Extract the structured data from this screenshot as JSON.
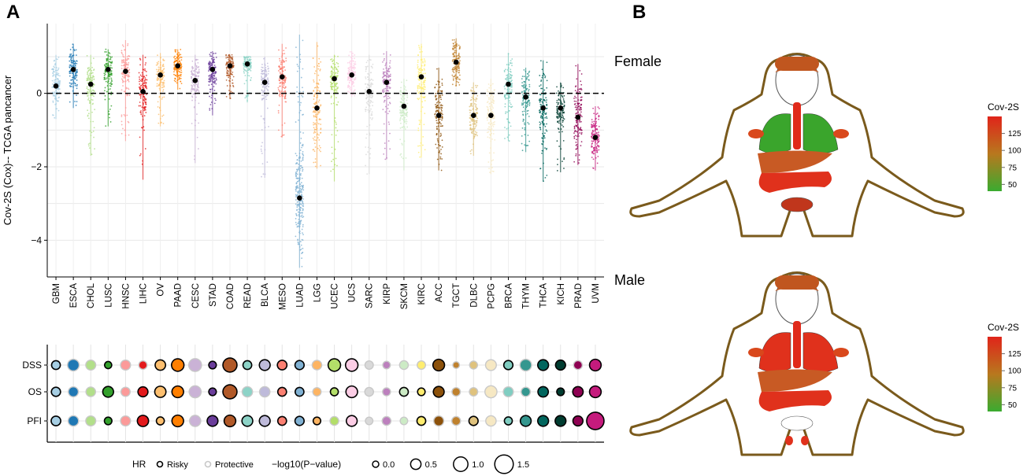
{
  "panels": {
    "a": "A",
    "b": "B"
  },
  "chart_data": [
    {
      "type": "scatter",
      "name": "cov2s-by-cancer",
      "ylabel": "Cov-2S (Cox)-- TCGA pancancer",
      "ylim": [
        -5,
        1.9
      ],
      "yticks": [
        -4,
        -2,
        0
      ],
      "ytick_labels": [
        "−4",
        "−2",
        "0"
      ],
      "reference_line": 0,
      "categories": [
        "GBM",
        "ESCA",
        "CHOL",
        "LUSC",
        "HNSC",
        "LIHC",
        "OV",
        "PAAD",
        "CESC",
        "STAD",
        "COAD",
        "READ",
        "BLCA",
        "MESO",
        "LUAD",
        "LGG",
        "UCEC",
        "UCS",
        "SARC",
        "KIRP",
        "SKCM",
        "KIRC",
        "ACC",
        "TGCT",
        "DLBC",
        "PCPG",
        "BRCA",
        "THYM",
        "THCA",
        "KICH",
        "PRAD",
        "UVM"
      ],
      "colors": [
        "#a6cee3",
        "#1f78b4",
        "#b2df8a",
        "#33a02c",
        "#fb9a99",
        "#e31a1c",
        "#fdbf6f",
        "#ff7f00",
        "#cab2d6",
        "#6a3d9a",
        "#b15928",
        "#8dd3c7",
        "#bebada",
        "#fb8072",
        "#80b1d3",
        "#fdb462",
        "#b3de69",
        "#fccde5",
        "#d9d9d9",
        "#bc80bd",
        "#ccebc5",
        "#ffed6f",
        "#8c510a",
        "#bf812d",
        "#dfc27d",
        "#f6e8c3",
        "#80cdc1",
        "#35978f",
        "#01665e",
        "#003c30",
        "#8e0152",
        "#c51b7d"
      ],
      "median": [
        0.2,
        0.65,
        0.25,
        0.65,
        0.6,
        0.05,
        0.5,
        0.75,
        0.35,
        0.65,
        0.75,
        0.8,
        0.3,
        0.45,
        -2.85,
        -0.4,
        0.4,
        0.5,
        0.05,
        0.3,
        -0.35,
        0.45,
        -0.6,
        0.85,
        -0.6,
        -0.6,
        0.25,
        -0.1,
        -0.4,
        -0.4,
        -0.65,
        -1.2
      ],
      "range_min": [
        -0.7,
        -0.4,
        -1.7,
        -0.9,
        -1.3,
        -2.35,
        -0.9,
        0.1,
        -1.9,
        -0.6,
        -0.15,
        -0.25,
        -2.3,
        -1.2,
        -4.75,
        -2.05,
        -2.4,
        -0.1,
        -2.2,
        -1.8,
        -2.1,
        -1.75,
        -2.1,
        0.2,
        -1.7,
        -2.2,
        -1.3,
        -1.6,
        -2.4,
        -2.15,
        -1.95,
        -2.1
      ],
      "range_max": [
        1.05,
        1.35,
        1.05,
        1.2,
        1.45,
        1.05,
        1.1,
        1.2,
        1.05,
        1.15,
        1.05,
        1.0,
        1.0,
        1.35,
        1.6,
        1.4,
        1.05,
        1.15,
        1.05,
        1.15,
        0.4,
        1.35,
        0.7,
        1.5,
        0.3,
        0.4,
        1.1,
        0.7,
        0.9,
        0.3,
        0.8,
        -0.35
      ]
    },
    {
      "type": "bubble",
      "name": "hr-survival-bubbles",
      "rows": [
        "DSS",
        "OS",
        "PFI"
      ],
      "legend": {
        "hr_title": "HR",
        "risky": "Risky",
        "protective": "Protective",
        "size_title": "−log10(P−value)",
        "size_values": [
          0.0,
          0.5,
          1.0,
          1.5
        ],
        "size_labels": [
          "0.0",
          "0.5",
          "1.0",
          "1.5"
        ]
      },
      "neglog10p": {
        "DSS": [
          0.3,
          0.65,
          0.45,
          0.1,
          0.45,
          0.25,
          0.5,
          0.75,
          0.8,
          0.15,
          0.95,
          0.3,
          0.55,
          0.4,
          0.35,
          0.4,
          0.75,
          0.75,
          0.25,
          0.15,
          0.3,
          0.25,
          0.65,
          0.05,
          0.2,
          0.55,
          0.35,
          0.65,
          0.55,
          0.45,
          0.3,
          0.65
        ],
        "OS": [
          0.35,
          0.45,
          0.4,
          0.55,
          0.35,
          0.45,
          0.6,
          0.65,
          0.7,
          0.15,
          0.95,
          0.5,
          0.5,
          0.3,
          0.3,
          0.25,
          0.2,
          0.65,
          0.3,
          0.2,
          0.3,
          0.15,
          0.55,
          0.25,
          0.25,
          0.7,
          0.45,
          0.35,
          0.5,
          0.15,
          0.5,
          0.65
        ],
        "PFI": [
          0.4,
          0.5,
          0.45,
          0.15,
          0.45,
          0.6,
          0.2,
          0.65,
          0.6,
          0.55,
          0.65,
          0.55,
          0.55,
          0.3,
          0.35,
          0.15,
          0.3,
          0.55,
          0.15,
          0.3,
          0.15,
          0.3,
          0.45,
          0.3,
          0.35,
          0.5,
          0.2,
          0.55,
          0.55,
          0.55,
          0.45,
          1.35
        ]
      },
      "risky": {
        "DSS": [
          true,
          false,
          false,
          true,
          false,
          false,
          true,
          true,
          false,
          true,
          true,
          true,
          true,
          true,
          true,
          false,
          true,
          true,
          false,
          false,
          false,
          false,
          true,
          false,
          false,
          false,
          true,
          false,
          true,
          true,
          false,
          true
        ],
        "OS": [
          true,
          false,
          false,
          true,
          false,
          true,
          true,
          true,
          false,
          true,
          true,
          false,
          false,
          true,
          true,
          false,
          true,
          true,
          false,
          false,
          true,
          true,
          true,
          false,
          false,
          false,
          false,
          false,
          true,
          true,
          true,
          true
        ],
        "PFI": [
          true,
          false,
          false,
          true,
          false,
          true,
          true,
          true,
          false,
          true,
          true,
          true,
          true,
          true,
          true,
          true,
          false,
          true,
          false,
          false,
          false,
          true,
          false,
          false,
          true,
          false,
          true,
          true,
          true,
          true,
          true,
          true
        ]
      }
    },
    {
      "type": "heatmap",
      "name": "body-map-cov2s",
      "panels": [
        "Female",
        "Male"
      ],
      "colorbar": {
        "title": "Cov-2S",
        "ticks": [
          50,
          75,
          100,
          125
        ],
        "tick_labels": [
          "50",
          "75",
          "100",
          "125"
        ],
        "range": [
          40,
          150
        ]
      }
    }
  ]
}
